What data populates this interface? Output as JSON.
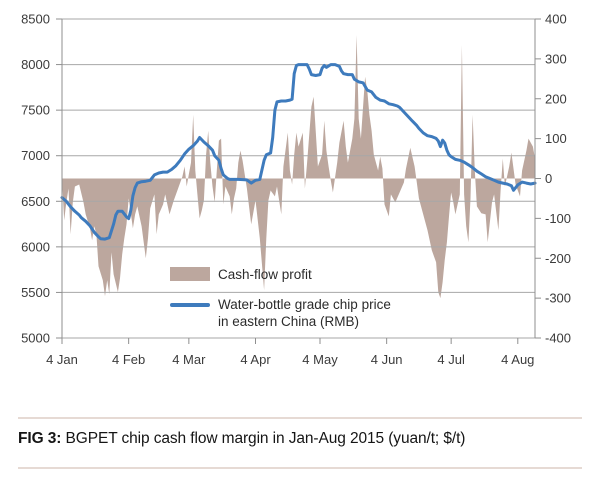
{
  "caption": {
    "label": "FIG 3:",
    "text": " BGPET chip cash flow margin in Jan-Aug 2015 (yuan/t; $/t)"
  },
  "legend": {
    "area_label": "Cash-flow profit",
    "line_label_line1": "Water-bottle grade chip price",
    "line_label_line2": "in eastern China (RMB)"
  },
  "colors": {
    "area": "#bca79e",
    "line": "#3e7bbd",
    "grid": "#a7a7a7",
    "axis": "#8f8f8f",
    "tick_text": "#3b3b3b",
    "caption_rule": "#e6dad4",
    "background": "#ffffff"
  },
  "chart_data": {
    "type": "area",
    "subtype": "combo area (right axis) + line (left axis)",
    "title": "BGPET chip cash flow margin in Jan-Aug 2015 (yuan/t; $/t)",
    "x_unit": "days since 4 Jan 2015",
    "x_range": [
      0,
      220
    ],
    "x_tick_days": [
      0,
      31,
      59,
      90,
      120,
      151,
      181,
      212
    ],
    "x_tick_labels": [
      "4 Jan",
      "4 Feb",
      "4 Mar",
      "4 Apr",
      "4 May",
      "4 Jun",
      "4 Jul",
      "4 Aug"
    ],
    "grid": true,
    "legend_position": "inside-bottom-center",
    "left_axis": {
      "unit": "yuan/t",
      "min": 5000,
      "max": 8500,
      "step": 500,
      "tick_labels": [
        "8500",
        "8000",
        "7500",
        "7000",
        "6500",
        "6000",
        "5500",
        "5000"
      ]
    },
    "right_axis": {
      "unit": "$/t",
      "min": -400,
      "max": 400,
      "step": 100,
      "tick_labels": [
        "400",
        "300",
        "200",
        "100",
        "0",
        "-100",
        "-200",
        "-300",
        "-400"
      ]
    },
    "series": [
      {
        "name": "Cash-flow profit",
        "type": "area",
        "axis": "right",
        "baseline": 0,
        "points": [
          [
            0,
            -5
          ],
          [
            1,
            -105
          ],
          [
            2,
            -60
          ],
          [
            3,
            -25
          ],
          [
            4,
            -140
          ],
          [
            5,
            -60
          ],
          [
            6,
            -20
          ],
          [
            8,
            -15
          ],
          [
            10,
            -60
          ],
          [
            11,
            -90
          ],
          [
            13,
            -125
          ],
          [
            14,
            -155
          ],
          [
            15,
            -120
          ],
          [
            16,
            -140
          ],
          [
            17,
            -220
          ],
          [
            19,
            -255
          ],
          [
            20,
            -295
          ],
          [
            21,
            -255
          ],
          [
            22,
            -290
          ],
          [
            23,
            -185
          ],
          [
            24,
            -240
          ],
          [
            26,
            -285
          ],
          [
            27,
            -250
          ],
          [
            28,
            -190
          ],
          [
            29,
            -150
          ],
          [
            30,
            -115
          ],
          [
            31,
            -50
          ],
          [
            33,
            -125
          ],
          [
            34,
            -90
          ],
          [
            35,
            -70
          ],
          [
            37,
            -120
          ],
          [
            39,
            -200
          ],
          [
            40,
            -150
          ],
          [
            41,
            -75
          ],
          [
            43,
            -40
          ],
          [
            44,
            -140
          ],
          [
            45,
            -90
          ],
          [
            47,
            -65
          ],
          [
            48,
            -40
          ],
          [
            50,
            -90
          ],
          [
            52,
            -55
          ],
          [
            54,
            -25
          ],
          [
            56,
            5
          ],
          [
            57,
            30
          ],
          [
            58,
            -20
          ],
          [
            59,
            10
          ],
          [
            60,
            40
          ],
          [
            61,
            160
          ],
          [
            62,
            20
          ],
          [
            63,
            -40
          ],
          [
            64,
            -100
          ],
          [
            65,
            -80
          ],
          [
            66,
            -55
          ],
          [
            67,
            60
          ],
          [
            68,
            120
          ],
          [
            69,
            40
          ],
          [
            70,
            -20
          ],
          [
            71,
            -60
          ],
          [
            72,
            20
          ],
          [
            73,
            95
          ],
          [
            74,
            100
          ],
          [
            75,
            -65
          ],
          [
            76,
            -20
          ],
          [
            78,
            -45
          ],
          [
            79,
            -90
          ],
          [
            80,
            -50
          ],
          [
            81,
            -25
          ],
          [
            82,
            40
          ],
          [
            83,
            70
          ],
          [
            84,
            45
          ],
          [
            86,
            -25
          ],
          [
            88,
            -115
          ],
          [
            90,
            -55
          ],
          [
            92,
            -150
          ],
          [
            94,
            -280
          ],
          [
            95,
            -150
          ],
          [
            96,
            -55
          ],
          [
            97,
            -30
          ],
          [
            99,
            -45
          ],
          [
            100,
            -20
          ],
          [
            101,
            -55
          ],
          [
            102,
            -90
          ],
          [
            103,
            30
          ],
          [
            105,
            115
          ],
          [
            106,
            20
          ],
          [
            107,
            -15
          ],
          [
            108,
            60
          ],
          [
            109,
            115
          ],
          [
            110,
            80
          ],
          [
            112,
            115
          ],
          [
            113,
            -25
          ],
          [
            114,
            40
          ],
          [
            116,
            180
          ],
          [
            117,
            205
          ],
          [
            118,
            120
          ],
          [
            119,
            30
          ],
          [
            121,
            60
          ],
          [
            122,
            145
          ],
          [
            123,
            70
          ],
          [
            124,
            30
          ],
          [
            125,
            -5
          ],
          [
            126,
            -35
          ],
          [
            128,
            40
          ],
          [
            129,
            90
          ],
          [
            131,
            145
          ],
          [
            132,
            80
          ],
          [
            133,
            40
          ],
          [
            135,
            100
          ],
          [
            136,
            150
          ],
          [
            137,
            360
          ],
          [
            138,
            150
          ],
          [
            139,
            100
          ],
          [
            141,
            255
          ],
          [
            142,
            220
          ],
          [
            143,
            160
          ],
          [
            144,
            120
          ],
          [
            145,
            60
          ],
          [
            147,
            20
          ],
          [
            148,
            55
          ],
          [
            149,
            25
          ],
          [
            150,
            -65
          ],
          [
            152,
            -95
          ],
          [
            153,
            -40
          ],
          [
            155,
            -60
          ],
          [
            157,
            -35
          ],
          [
            159,
            -10
          ],
          [
            160,
            25
          ],
          [
            162,
            77
          ],
          [
            164,
            30
          ],
          [
            165,
            -10
          ],
          [
            166,
            -50
          ],
          [
            168,
            -90
          ],
          [
            170,
            -130
          ],
          [
            172,
            -180
          ],
          [
            174,
            -210
          ],
          [
            175,
            -285
          ],
          [
            176,
            -300
          ],
          [
            177,
            -260
          ],
          [
            178,
            -205
          ],
          [
            179,
            -160
          ],
          [
            180,
            -95
          ],
          [
            181,
            -35
          ],
          [
            182,
            -60
          ],
          [
            183,
            -90
          ],
          [
            185,
            -40
          ],
          [
            186,
            335
          ],
          [
            187,
            -40
          ],
          [
            188,
            -120
          ],
          [
            189,
            -160
          ],
          [
            190,
            -50
          ],
          [
            191,
            160
          ],
          [
            192,
            20
          ],
          [
            193,
            -70
          ],
          [
            195,
            -87
          ],
          [
            197,
            -90
          ],
          [
            198,
            -160
          ],
          [
            200,
            -60
          ],
          [
            201,
            -40
          ],
          [
            203,
            -130
          ],
          [
            204,
            -30
          ],
          [
            205,
            50
          ],
          [
            206,
            -20
          ],
          [
            208,
            30
          ],
          [
            209,
            65
          ],
          [
            211,
            -15
          ],
          [
            213,
            -45
          ],
          [
            214,
            20
          ],
          [
            216,
            70
          ],
          [
            217,
            100
          ],
          [
            219,
            80
          ],
          [
            220,
            50
          ]
        ]
      },
      {
        "name": "Water-bottle grade chip price in eastern China (RMB)",
        "type": "line",
        "axis": "left",
        "width": 3,
        "points": [
          [
            0,
            6540
          ],
          [
            2,
            6500
          ],
          [
            4,
            6440
          ],
          [
            6,
            6390
          ],
          [
            8,
            6350
          ],
          [
            9,
            6320
          ],
          [
            11,
            6280
          ],
          [
            13,
            6230
          ],
          [
            15,
            6160
          ],
          [
            17,
            6110
          ],
          [
            18,
            6090
          ],
          [
            20,
            6085
          ],
          [
            22,
            6100
          ],
          [
            24,
            6250
          ],
          [
            25,
            6350
          ],
          [
            26,
            6390
          ],
          [
            28,
            6390
          ],
          [
            30,
            6330
          ],
          [
            31,
            6310
          ],
          [
            32,
            6400
          ],
          [
            33,
            6560
          ],
          [
            34,
            6650
          ],
          [
            35,
            6700
          ],
          [
            37,
            6715
          ],
          [
            39,
            6720
          ],
          [
            41,
            6730
          ],
          [
            43,
            6790
          ],
          [
            45,
            6810
          ],
          [
            47,
            6820
          ],
          [
            49,
            6820
          ],
          [
            51,
            6850
          ],
          [
            53,
            6890
          ],
          [
            55,
            6950
          ],
          [
            57,
            7020
          ],
          [
            59,
            7070
          ],
          [
            61,
            7110
          ],
          [
            63,
            7160
          ],
          [
            64,
            7200
          ],
          [
            66,
            7150
          ],
          [
            68,
            7110
          ],
          [
            70,
            7060
          ],
          [
            71,
            7000
          ],
          [
            73,
            6950
          ],
          [
            74,
            6860
          ],
          [
            75,
            6790
          ],
          [
            77,
            6750
          ],
          [
            78,
            6740
          ],
          [
            82,
            6740
          ],
          [
            86,
            6735
          ],
          [
            88,
            6700
          ],
          [
            90,
            6730
          ],
          [
            92,
            6740
          ],
          [
            94,
            6950
          ],
          [
            95,
            7010
          ],
          [
            97,
            7030
          ],
          [
            98,
            7200
          ],
          [
            99,
            7500
          ],
          [
            100,
            7590
          ],
          [
            102,
            7600
          ],
          [
            104,
            7600
          ],
          [
            106,
            7610
          ],
          [
            107,
            7620
          ],
          [
            108,
            7900
          ],
          [
            109,
            7990
          ],
          [
            110,
            8000
          ],
          [
            114,
            8000
          ],
          [
            115,
            7950
          ],
          [
            116,
            7890
          ],
          [
            118,
            7880
          ],
          [
            120,
            7890
          ],
          [
            121,
            7960
          ],
          [
            122,
            7990
          ],
          [
            123,
            7970
          ],
          [
            125,
            8000
          ],
          [
            127,
            8000
          ],
          [
            129,
            7980
          ],
          [
            130,
            7930
          ],
          [
            131,
            7900
          ],
          [
            133,
            7890
          ],
          [
            135,
            7890
          ],
          [
            136,
            7840
          ],
          [
            138,
            7810
          ],
          [
            140,
            7800
          ],
          [
            142,
            7720
          ],
          [
            144,
            7700
          ],
          [
            146,
            7640
          ],
          [
            148,
            7610
          ],
          [
            150,
            7600
          ],
          [
            152,
            7570
          ],
          [
            154,
            7560
          ],
          [
            156,
            7545
          ],
          [
            157,
            7530
          ],
          [
            159,
            7480
          ],
          [
            161,
            7430
          ],
          [
            163,
            7380
          ],
          [
            165,
            7330
          ],
          [
            166,
            7300
          ],
          [
            168,
            7250
          ],
          [
            170,
            7220
          ],
          [
            172,
            7210
          ],
          [
            174,
            7190
          ],
          [
            175,
            7160
          ],
          [
            176,
            7100
          ],
          [
            177,
            7170
          ],
          [
            178,
            7140
          ],
          [
            179,
            7060
          ],
          [
            180,
            7010
          ],
          [
            181,
            6990
          ],
          [
            183,
            6960
          ],
          [
            185,
            6950
          ],
          [
            187,
            6930
          ],
          [
            189,
            6900
          ],
          [
            191,
            6870
          ],
          [
            193,
            6830
          ],
          [
            195,
            6800
          ],
          [
            197,
            6770
          ],
          [
            199,
            6750
          ],
          [
            201,
            6730
          ],
          [
            203,
            6710
          ],
          [
            205,
            6700
          ],
          [
            207,
            6690
          ],
          [
            209,
            6670
          ],
          [
            210,
            6620
          ],
          [
            212,
            6680
          ],
          [
            214,
            6710
          ],
          [
            216,
            6700
          ],
          [
            218,
            6690
          ],
          [
            220,
            6700
          ]
        ]
      }
    ]
  }
}
